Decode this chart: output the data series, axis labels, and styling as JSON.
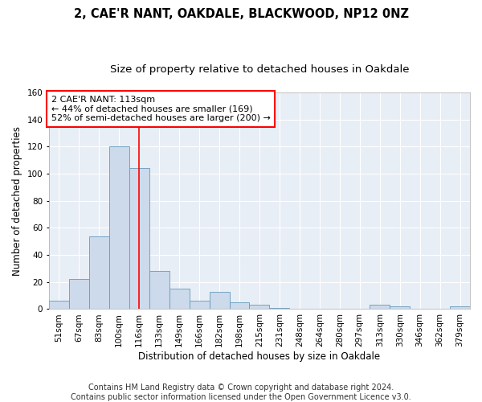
{
  "title1": "2, CAE'R NANT, OAKDALE, BLACKWOOD, NP12 0NZ",
  "title2": "Size of property relative to detached houses in Oakdale",
  "xlabel": "Distribution of detached houses by size in Oakdale",
  "ylabel": "Number of detached properties",
  "categories": [
    "51sqm",
    "67sqm",
    "83sqm",
    "100sqm",
    "116sqm",
    "133sqm",
    "149sqm",
    "166sqm",
    "182sqm",
    "198sqm",
    "215sqm",
    "231sqm",
    "248sqm",
    "264sqm",
    "280sqm",
    "297sqm",
    "313sqm",
    "330sqm",
    "346sqm",
    "362sqm",
    "379sqm"
  ],
  "values": [
    6,
    22,
    54,
    120,
    104,
    28,
    15,
    6,
    13,
    5,
    3,
    1,
    0,
    0,
    0,
    0,
    3,
    2,
    0,
    0,
    2
  ],
  "bar_color": "#ccdaeb",
  "bar_edge_color": "#6699bb",
  "red_line_x": 4.5,
  "annotation_text": "2 CAE'R NANT: 113sqm\n← 44% of detached houses are smaller (169)\n52% of semi-detached houses are larger (200) →",
  "annotation_box_color": "white",
  "annotation_box_edge_color": "red",
  "footnote": "Contains HM Land Registry data © Crown copyright and database right 2024.\nContains public sector information licensed under the Open Government Licence v3.0.",
  "ylim": [
    0,
    160
  ],
  "yticks": [
    0,
    20,
    40,
    60,
    80,
    100,
    120,
    140,
    160
  ],
  "bg_color": "#e8eef5",
  "grid_color": "white",
  "title1_fontsize": 10.5,
  "title2_fontsize": 9.5,
  "xlabel_fontsize": 8.5,
  "ylabel_fontsize": 8.5,
  "tick_fontsize": 7.5,
  "annot_fontsize": 8,
  "footnote_fontsize": 7
}
